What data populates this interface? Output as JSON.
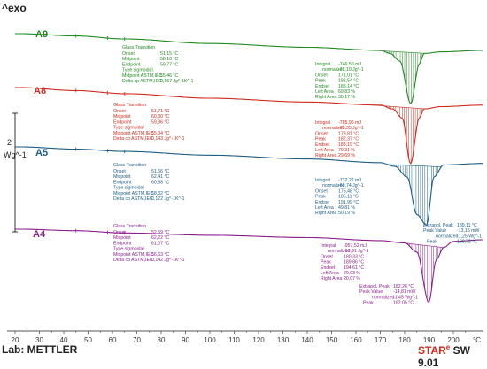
{
  "header": {
    "exo_label": "^exo",
    "scale_label": "2",
    "unit_label": "Wg^-1"
  },
  "footer": {
    "lab_label": "Lab: METTLER",
    "brand_star": "STAR",
    "brand_e": "e",
    "brand_rest": " SW 9.01"
  },
  "colors": {
    "A9": "#1f8b1f",
    "A8": "#d12a1e",
    "A5": "#1b5e86",
    "A4": "#8c1d8c",
    "axis": "#555555",
    "ann": "#1a3a70"
  },
  "chart_data": {
    "type": "line",
    "xlabel": "",
    "ylabel": "",
    "xlim": [
      20,
      200
    ],
    "ticks": [
      20,
      30,
      40,
      50,
      60,
      70,
      80,
      90,
      100,
      110,
      120,
      130,
      140,
      150,
      160,
      170,
      180,
      190,
      200
    ],
    "units": [
      "°C"
    ],
    "series": [
      {
        "name": "A9",
        "glass_transition": {
          "title": "Glass Transition",
          "rows": [
            [
              "Onset",
              "51,15 °C"
            ],
            [
              "Midpoint",
              "58,10 °C"
            ],
            [
              "Endpoint",
              "59,77 °C"
            ],
            [
              "Type sigmoidal",
              ""
            ],
            [
              "Midpoint ASTM,IEC",
              "55,46 °C"
            ],
            [
              "Delta cp ASTM,IEC",
              "0,167 Jg^-1K^-1"
            ]
          ]
        },
        "integral": {
          "rows": [
            [
              "Integral",
              "-746,50 mJ"
            ],
            [
              "normalized",
              "-71,10 Jg^-1"
            ],
            [
              "Onset",
              "171,01 °C"
            ],
            [
              "Peak",
              "182,54 °C"
            ],
            [
              "Endset",
              "188,14 °C"
            ],
            [
              "Left Area",
              "69,83 %"
            ],
            [
              "Right Area",
              "30,17 %"
            ]
          ]
        },
        "points": [
          [
            22,
            0
          ],
          [
            45,
            -1.5
          ],
          [
            65,
            -3.5
          ],
          [
            100,
            -6.5
          ],
          [
            140,
            -9
          ],
          [
            170,
            -11
          ],
          [
            174,
            -13
          ],
          [
            178,
            -18
          ],
          [
            182.5,
            -46
          ],
          [
            186,
            -20
          ],
          [
            188,
            -13
          ],
          [
            195,
            -12
          ],
          [
            212,
            -11
          ]
        ]
      },
      {
        "name": "A8",
        "glass_transition": {
          "title": "Glass Transition",
          "rows": [
            [
              "Onset",
              "51,71 °C"
            ],
            [
              "Midpoint",
              "60,30 °C"
            ],
            [
              "Endpoint",
              "59,36 °C"
            ],
            [
              "Type sigmoidal",
              ""
            ],
            [
              "Midpoint ASTM,IEC",
              "55,04 °C"
            ],
            [
              "Delta cp ASTM,IEC",
              "0,143 Jg^-1K^-1"
            ]
          ]
        },
        "integral": {
          "rows": [
            [
              "Integral",
              "-785,96 mJ"
            ],
            [
              "normalized",
              "-75,35 Jg^-1"
            ],
            [
              "Onset",
              "173,81 °C"
            ],
            [
              "Peak",
              "182,37 °C"
            ],
            [
              "Endset",
              "188,19 °C"
            ],
            [
              "Left Area",
              "70,31 %"
            ],
            [
              "Right Area",
              "29,69 %"
            ]
          ]
        },
        "points": [
          [
            22,
            0
          ],
          [
            45,
            -2
          ],
          [
            65,
            -4
          ],
          [
            100,
            -7
          ],
          [
            140,
            -9.5
          ],
          [
            170,
            -11.5
          ],
          [
            175,
            -14
          ],
          [
            179,
            -20
          ],
          [
            182.4,
            -50
          ],
          [
            186,
            -20
          ],
          [
            188,
            -14
          ],
          [
            195,
            -12.5
          ],
          [
            212,
            -11.5
          ]
        ]
      },
      {
        "name": "A5",
        "glass_transition": {
          "title": "Glass Transition",
          "rows": [
            [
              "Onset",
              "51,66 °C"
            ],
            [
              "Midpoint",
              "62,41 °C"
            ],
            [
              "Endpoint",
              "60,98 °C"
            ],
            [
              "Type sigmoidal",
              ""
            ],
            [
              "Midpoint ASTM,IEC",
              "58,32 °C"
            ],
            [
              "Delta cp ASTM,IEC",
              "0,122 Jg^-1K^-1"
            ]
          ]
        },
        "integral": {
          "rows": [
            [
              "Integral",
              "-732,22 mJ"
            ],
            [
              "normalized",
              "-69,74 Jg^-1"
            ],
            [
              "Onset",
              "175,48 °C"
            ],
            [
              "Peak",
              "185,11 °C"
            ],
            [
              "Endset",
              "191,99 °C"
            ],
            [
              "Left Area",
              "49,81 %"
            ],
            [
              "Right Area",
              "50,19 %"
            ]
          ]
        },
        "peak_info": {
          "rows": [
            [
              "Extrapol. Peak",
              "189,11 °C"
            ],
            [
              "Peak Value",
              "-13,15 mW"
            ],
            [
              "normalized",
              "-1,25 Wg^-1"
            ],
            [
              "Peak",
              "188,72 °C"
            ]
          ]
        },
        "points": [
          [
            22,
            0
          ],
          [
            45,
            -1.5
          ],
          [
            65,
            -3
          ],
          [
            100,
            -5.5
          ],
          [
            140,
            -8
          ],
          [
            170,
            -10.5
          ],
          [
            176,
            -13
          ],
          [
            181,
            -20
          ],
          [
            185,
            -45
          ],
          [
            189,
            -52
          ],
          [
            192,
            -20
          ],
          [
            196,
            -12
          ],
          [
            212,
            -11
          ]
        ]
      },
      {
        "name": "A4",
        "glass_transition": {
          "title": "Glass Transition",
          "rows": [
            [
              "Onset",
              "52,59 °C"
            ],
            [
              "Midpoint",
              "62,22 °C"
            ],
            [
              "Endpoint",
              "61,07 °C"
            ],
            [
              "Type sigmoidal",
              ""
            ],
            [
              "Midpoint ASTM,IEC",
              "56,63 °C"
            ],
            [
              "Delta cp ASTM,IEC",
              "0,142 Jg^-1K^-1"
            ]
          ]
        },
        "integral": {
          "rows": [
            [
              "Integral",
              "-957,52 mJ"
            ],
            [
              "normalized",
              "-93,91 Jg^-1"
            ],
            [
              "Onset",
              "180,33 °C"
            ],
            [
              "Peak",
              "189,86 °C"
            ],
            [
              "Endset",
              "194,61 °C"
            ],
            [
              "Left Area",
              "79,93 %"
            ],
            [
              "Right Area",
              "20,07 %"
            ]
          ]
        },
        "peak_info": {
          "rows": [
            [
              "Extrapol. Peak",
              "182,26 °C"
            ],
            [
              "Peak Value",
              "-14,81 mW"
            ],
            [
              "normalized",
              "-1,45 Wg^-1"
            ],
            [
              "Peak",
              "182,05 °C"
            ]
          ]
        },
        "points": [
          [
            22,
            0
          ],
          [
            45,
            -1
          ],
          [
            65,
            -2.5
          ],
          [
            100,
            -4
          ],
          [
            140,
            -5.5
          ],
          [
            170,
            -7.5
          ],
          [
            180,
            -9
          ],
          [
            185,
            -15
          ],
          [
            189.9,
            -48
          ],
          [
            193,
            -20
          ],
          [
            196,
            -12
          ],
          [
            200,
            -8
          ],
          [
            212,
            -7
          ]
        ]
      }
    ]
  }
}
